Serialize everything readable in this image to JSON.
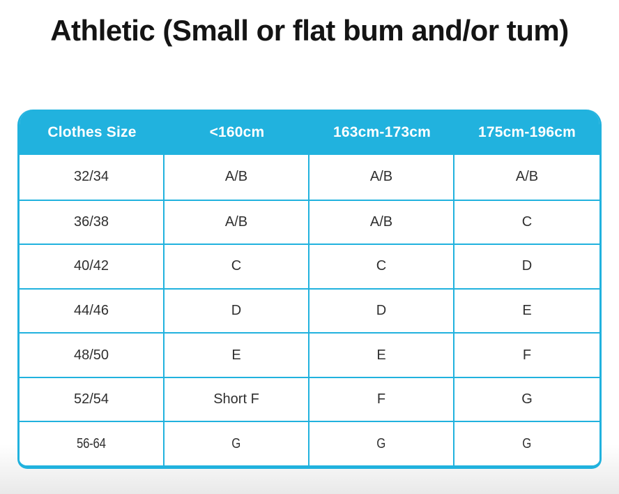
{
  "chart_data": {
    "type": "table",
    "title": "Athletic (Small or flat bum and/or tum)",
    "columns": [
      "Clothes Size",
      "<160cm",
      "163cm-173cm",
      "175cm-196cm"
    ],
    "rows": [
      [
        "32/34",
        "A/B",
        "A/B",
        "A/B"
      ],
      [
        "36/38",
        "A/B",
        "A/B",
        "C"
      ],
      [
        "40/42",
        "C",
        "C",
        "D"
      ],
      [
        "44/46",
        "D",
        "D",
        "E"
      ],
      [
        "48/50",
        "E",
        "E",
        "F"
      ],
      [
        "52/54",
        "Short F",
        "F",
        "G"
      ],
      [
        "56-64",
        "G",
        "G",
        "G"
      ]
    ],
    "legend_position": "none",
    "grid": "cyan cell borders"
  },
  "colors": {
    "accent_cyan": "#21b2de",
    "header_text": "#ffffff",
    "body_text": "#2f2f2f",
    "title_text": "#141414",
    "page_bottom_fade": "#e9e9e9"
  }
}
